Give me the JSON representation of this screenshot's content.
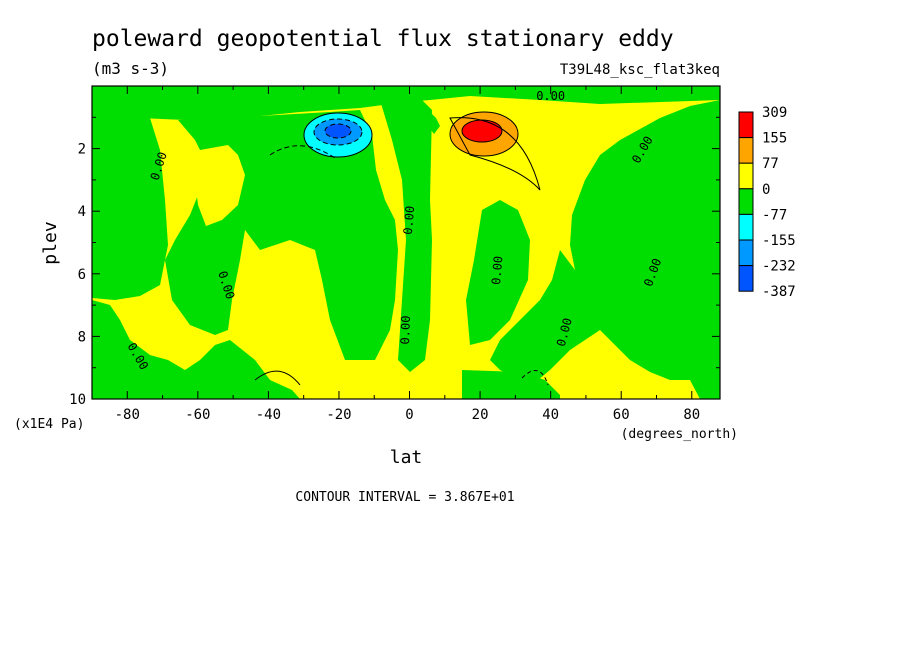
{
  "chart_data": {
    "type": "heatmap",
    "title": "poleward geopotential flux stationary eddy",
    "units": "(m3 s-3)",
    "run_label": "T39L48_ksc_flat3keq",
    "xlabel": "lat",
    "x_units": "(degrees_north)",
    "ylabel": "plev",
    "y_units": "(x1E4 Pa)",
    "xlim": [
      -90,
      88
    ],
    "ylim": [
      10,
      0
    ],
    "x_ticks": [
      -80,
      -60,
      -40,
      -20,
      0,
      20,
      40,
      60,
      80
    ],
    "x_tick_labels": [
      "-80",
      "-60",
      "-40",
      "-20",
      "0",
      "20",
      "40",
      "60",
      "80"
    ],
    "y_ticks": [
      2,
      4,
      6,
      8,
      10
    ],
    "y_tick_labels": [
      "2",
      "4",
      "6",
      "8",
      "10"
    ],
    "contour_interval": "CONTOUR INTERVAL = 3.867E+01",
    "contour_labels": [
      {
        "text": "0.00",
        "lat": -70,
        "plev": 2.6,
        "angle": -72
      },
      {
        "text": "0.00",
        "lat": -53,
        "plev": 6.4,
        "angle": 72
      },
      {
        "text": "0.00",
        "lat": -78,
        "plev": 8.7,
        "angle": 60
      },
      {
        "text": "0.00",
        "lat": 1,
        "plev": 4.3,
        "angle": -85
      },
      {
        "text": "0.00",
        "lat": 0,
        "plev": 7.8,
        "angle": -88
      },
      {
        "text": "0.00",
        "lat": 26,
        "plev": 5.9,
        "angle": -85
      },
      {
        "text": "0.00",
        "lat": 45,
        "plev": 7.9,
        "angle": -75
      },
      {
        "text": "0.00",
        "lat": 70,
        "plev": 6.0,
        "angle": -70
      },
      {
        "text": "0.00",
        "lat": 67,
        "plev": 2.1,
        "angle": -60
      },
      {
        "text": "0.00",
        "lat": 40,
        "plev": 0.45,
        "angle": 0
      }
    ],
    "colorbar": {
      "levels": [
        "309",
        "155",
        "77",
        "0",
        "-77",
        "-155",
        "-232",
        "-387"
      ],
      "colors": [
        "#ff0000",
        "#ffa500",
        "#ffff00",
        "#00dd00",
        "#00ffff",
        "#0099ff",
        "#0055ff"
      ]
    },
    "features": [
      {
        "name": "positive-max",
        "lat": 22,
        "plev": 1.5,
        "value_class": "309"
      },
      {
        "name": "negative-min",
        "lat": -21,
        "plev": 1.5,
        "value_class": "-232"
      }
    ]
  }
}
